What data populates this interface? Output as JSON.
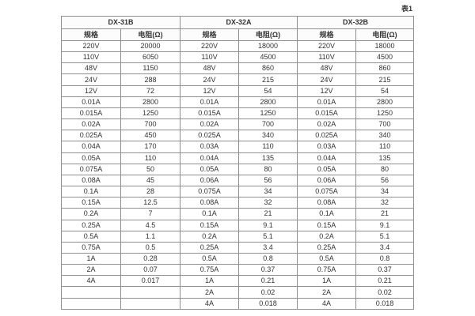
{
  "caption": "表1",
  "table": {
    "groups": [
      {
        "name": "DX-31B"
      },
      {
        "name": "DX-32A"
      },
      {
        "name": "DX-32B"
      }
    ],
    "header_row": [
      "规格",
      "电阻(Ω)",
      "规格",
      "电阻(Ω)",
      "规格",
      "电阻(Ω)"
    ],
    "rows": [
      [
        "220V",
        "20000",
        "220V",
        "18000",
        "220V",
        "18000"
      ],
      [
        "110V",
        "6050",
        "110V",
        "4500",
        "110V",
        "4500"
      ],
      [
        "48V",
        "1150",
        "48V",
        "860",
        "48V",
        "860"
      ],
      [
        "24V",
        "288",
        "24V",
        "215",
        "24V",
        "215"
      ],
      [
        "12V",
        "72",
        "12V",
        "54",
        "12V",
        "54"
      ],
      [
        "0.01A",
        "2800",
        "0.01A",
        "2800",
        "0.01A",
        "2800"
      ],
      [
        "0.015A",
        "1250",
        "0.015A",
        "1250",
        "0.015A",
        "1250"
      ],
      [
        "0.02A",
        "700",
        "0.02A",
        "700",
        "0.02A",
        "700"
      ],
      [
        "0.025A",
        "450",
        "0.025A",
        "340",
        "0.025A",
        "340"
      ],
      [
        "0.04A",
        "170",
        "0.03A",
        "110",
        "0.03A",
        "110"
      ],
      [
        "0.05A",
        "110",
        "0.04A",
        "135",
        "0.04A",
        "135"
      ],
      [
        "0.075A",
        "50",
        "0.05A",
        "80",
        "0.05A",
        "80"
      ],
      [
        "0.08A",
        "45",
        "0.06A",
        "56",
        "0.06A",
        "56"
      ],
      [
        "0.1A",
        "28",
        "0.075A",
        "34",
        "0.075A",
        "34"
      ],
      [
        "0.15A",
        "12.5",
        "0.08A",
        "32",
        "0.08A",
        "32"
      ],
      [
        "0.2A",
        "7",
        "0.1A",
        "21",
        "0.1A",
        "21"
      ],
      [
        "0.25A",
        "4.5",
        "0.15A",
        "9.1",
        "0.15A",
        "9.1"
      ],
      [
        "0.5A",
        "1.1",
        "0.2A",
        "5.1",
        "0.2A",
        "5.1"
      ],
      [
        "0.75A",
        "0.5",
        "0.25A",
        "3.4",
        "0.25A",
        "3.4"
      ],
      [
        "1A",
        "0.28",
        "0.5A",
        "0.8",
        "0.5A",
        "0.8"
      ],
      [
        "2A",
        "0.07",
        "0.75A",
        "0.37",
        "0.75A",
        "0.37"
      ],
      [
        "4A",
        "0.017",
        "1A",
        "0.21",
        "1A",
        "0.21"
      ],
      [
        "",
        "",
        "2A",
        "0.02",
        "2A",
        "0.02"
      ],
      [
        "",
        "",
        "4A",
        "0.018",
        "4A",
        "0.018"
      ]
    ]
  }
}
